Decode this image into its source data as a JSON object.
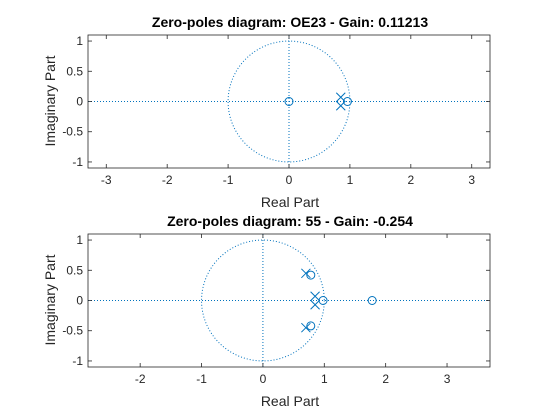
{
  "chart_data": [
    {
      "type": "scatter",
      "title": "Zero-poles diagram: OE23 - Gain: 0.11213",
      "xlabel": "Real Part",
      "ylabel": "Imaginary Part",
      "xlim": [
        -3.3,
        3.3
      ],
      "ylim": [
        -1.1,
        1.1
      ],
      "xticks": [
        -3,
        -2,
        -1,
        0,
        1,
        2,
        3
      ],
      "yticks": [
        -1,
        -0.5,
        0,
        0.5,
        1
      ],
      "ytick_labels": [
        "-1",
        "-0.5",
        "0",
        "0.5",
        "1"
      ],
      "xtick_labels": [
        "-3",
        "-2",
        "-1",
        "0",
        "1",
        "2",
        "3"
      ],
      "unit_circle": true,
      "zeros": [
        {
          "re": 0.0,
          "im": 0.0
        },
        {
          "re": 0.96,
          "im": 0.0
        }
      ],
      "poles": [
        {
          "re": 0.85,
          "im": 0.07
        },
        {
          "re": 0.85,
          "im": -0.07
        }
      ]
    },
    {
      "type": "scatter",
      "title": "Zero-poles diagram: 55 - Gain: -0.254",
      "xlabel": "Real Part",
      "ylabel": "Imaginary Part",
      "xlim": [
        -2.85,
        3.7
      ],
      "ylim": [
        -1.1,
        1.1
      ],
      "xticks": [
        -2,
        -1,
        0,
        1,
        2,
        3
      ],
      "yticks": [
        -1,
        -0.5,
        0,
        0.5,
        1
      ],
      "ytick_labels": [
        "-1",
        "-0.5",
        "0",
        "0.5",
        "1"
      ],
      "xtick_labels": [
        "-2",
        "-1",
        "0",
        "1",
        "2",
        "3"
      ],
      "unit_circle": true,
      "zeros": [
        {
          "re": 0.78,
          "im": 0.42
        },
        {
          "re": 0.78,
          "im": -0.42
        },
        {
          "re": 0.98,
          "im": 0.0
        },
        {
          "re": 1.78,
          "im": 0.0
        }
      ],
      "poles": [
        {
          "re": 0.7,
          "im": 0.45
        },
        {
          "re": 0.7,
          "im": -0.45
        },
        {
          "re": 0.85,
          "im": 0.07
        },
        {
          "re": 0.85,
          "im": -0.07
        }
      ]
    }
  ],
  "style": {
    "marker_color": "#0072BD",
    "axis_color": "#262626"
  }
}
